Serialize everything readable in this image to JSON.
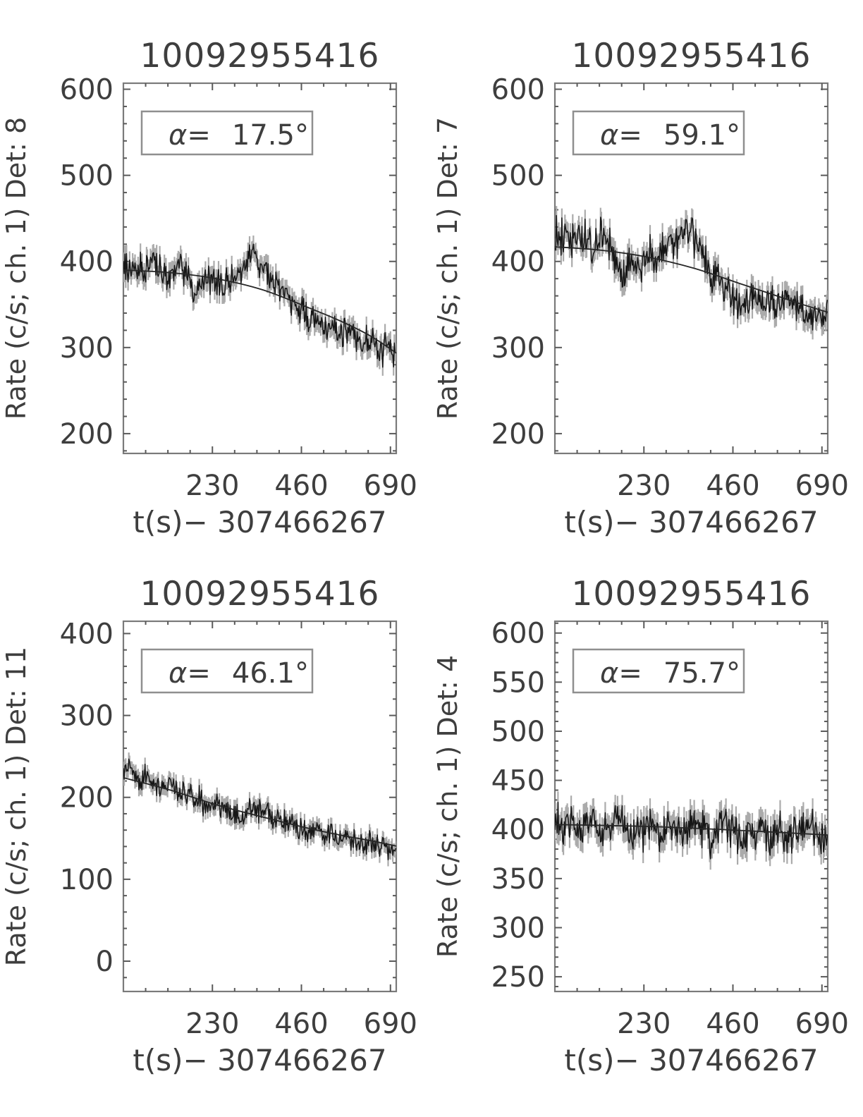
{
  "figure": {
    "kind": "2x2 grid of detector light-curve plots",
    "background": "#ffffff",
    "text_color": "#3e3e3e",
    "data_line_color": "#161616",
    "error_bar_color": "#ababab",
    "axis_color": "#7a7a7a"
  },
  "chart_data": [
    {
      "type": "line",
      "title": "10092955416",
      "ylabel": "Rate (c/s; ch. 1) Det: 8",
      "xlabel": "t(s)− 307466267",
      "legend": {
        "label": "α=",
        "value": "17.5°"
      },
      "xlim": [
        0,
        705
      ],
      "x_ticks": [
        230,
        460,
        690
      ],
      "x_minor_step": 57.5,
      "ylim": [
        177,
        607
      ],
      "y_ticks": [
        200,
        300,
        400,
        500,
        600
      ],
      "y_minor_step": 20,
      "series": [
        {
          "name": "measured rate",
          "sample_step_s": 20,
          "values": [
            400,
            392,
            386,
            396,
            404,
            388,
            381,
            396,
            384,
            366,
            374,
            381,
            376,
            371,
            379,
            389,
            401,
            407,
            391,
            379,
            371,
            361,
            351,
            341,
            336,
            331,
            333,
            321,
            318,
            322,
            311,
            306,
            308,
            300,
            295,
            290,
            287
          ],
          "noise_sigma": 9,
          "error_bar_half": 10,
          "noise_seed": 81
        },
        {
          "name": "background fit",
          "anchors": [
            [
              0,
              390
            ],
            [
              120,
              387
            ],
            [
              240,
              380
            ],
            [
              360,
              367
            ],
            [
              480,
              346
            ],
            [
              560,
              331
            ],
            [
              640,
              313
            ],
            [
              720,
              289
            ]
          ]
        }
      ]
    },
    {
      "type": "line",
      "title": "10092955416",
      "ylabel": "Rate (c/s; ch. 1) Det: 7",
      "xlabel": "t(s)− 307466267",
      "legend": {
        "label": "α=",
        "value": "59.1°"
      },
      "xlim": [
        0,
        705
      ],
      "x_ticks": [
        230,
        460,
        690
      ],
      "x_minor_step": 57.5,
      "ylim": [
        177,
        607
      ],
      "y_ticks": [
        200,
        300,
        400,
        500,
        600
      ],
      "y_minor_step": 20,
      "series": [
        {
          "name": "measured rate",
          "sample_step_s": 20,
          "values": [
            433,
            428,
            420,
            431,
            425,
            415,
            428,
            418,
            405,
            385,
            400,
            392,
            408,
            401,
            412,
            420,
            431,
            438,
            428,
            415,
            378,
            390,
            370,
            363,
            355,
            350,
            360,
            355,
            350,
            348,
            355,
            345,
            340,
            338,
            334,
            340,
            350
          ],
          "noise_sigma": 10,
          "error_bar_half": 11,
          "noise_seed": 72
        },
        {
          "name": "background fit",
          "anchors": [
            [
              0,
              417
            ],
            [
              120,
              413
            ],
            [
              240,
              405
            ],
            [
              360,
              392
            ],
            [
              480,
              374
            ],
            [
              560,
              362
            ],
            [
              640,
              350
            ],
            [
              720,
              339
            ]
          ]
        }
      ]
    },
    {
      "type": "line",
      "title": "10092955416",
      "ylabel": "Rate (c/s; ch. 1) Det: 11",
      "xlabel": "t(s)− 307466267",
      "legend": {
        "label": "α=",
        "value": "46.1°"
      },
      "xlim": [
        0,
        705
      ],
      "x_ticks": [
        230,
        460,
        690
      ],
      "x_minor_step": 57.5,
      "ylim": [
        -37,
        415
      ],
      "y_ticks": [
        0,
        100,
        200,
        300,
        400
      ],
      "y_minor_step": 20,
      "series": [
        {
          "name": "measured rate",
          "sample_step_s": 20,
          "values": [
            230,
            234,
            222,
            227,
            216,
            212,
            218,
            206,
            208,
            200,
            198,
            191,
            192,
            186,
            178,
            172,
            180,
            188,
            185,
            181,
            171,
            168,
            172,
            161,
            158,
            162,
            151,
            155,
            148,
            152,
            145,
            142,
            148,
            140,
            142,
            137,
            122
          ],
          "noise_sigma": 7,
          "error_bar_half": 8,
          "noise_seed": 113
        },
        {
          "name": "background fit",
          "anchors": [
            [
              0,
              224
            ],
            [
              120,
              209
            ],
            [
              240,
              191
            ],
            [
              360,
              176
            ],
            [
              480,
              162
            ],
            [
              560,
              154
            ],
            [
              640,
              147
            ],
            [
              720,
              139
            ]
          ]
        }
      ]
    },
    {
      "type": "line",
      "title": "10092955416",
      "ylabel": "Rate (c/s; ch. 1) Det: 4",
      "xlabel": "t(s)− 307466267",
      "legend": {
        "label": "α=",
        "value": "75.7°"
      },
      "xlim": [
        0,
        705
      ],
      "x_ticks": [
        230,
        460,
        690
      ],
      "x_minor_step": 57.5,
      "ylim": [
        235,
        612
      ],
      "y_ticks": [
        250,
        300,
        350,
        400,
        450,
        500,
        550,
        600
      ],
      "y_minor_step": 10,
      "series": [
        {
          "name": "measured rate",
          "sample_step_s": 20,
          "values": [
            408,
            400,
            411,
            398,
            405,
            410,
            395,
            402,
            414,
            400,
            391,
            398,
            405,
            400,
            395,
            408,
            402,
            398,
            410,
            405,
            395,
            400,
            411,
            398,
            390,
            402,
            395,
            400,
            386,
            398,
            392,
            400,
            395,
            405,
            390,
            397,
            400
          ],
          "noise_sigma": 10,
          "error_bar_half": 11,
          "noise_seed": 44
        },
        {
          "name": "background fit",
          "anchors": [
            [
              0,
              405
            ],
            [
              240,
              403
            ],
            [
              480,
              399
            ],
            [
              720,
              394
            ]
          ]
        }
      ]
    }
  ]
}
